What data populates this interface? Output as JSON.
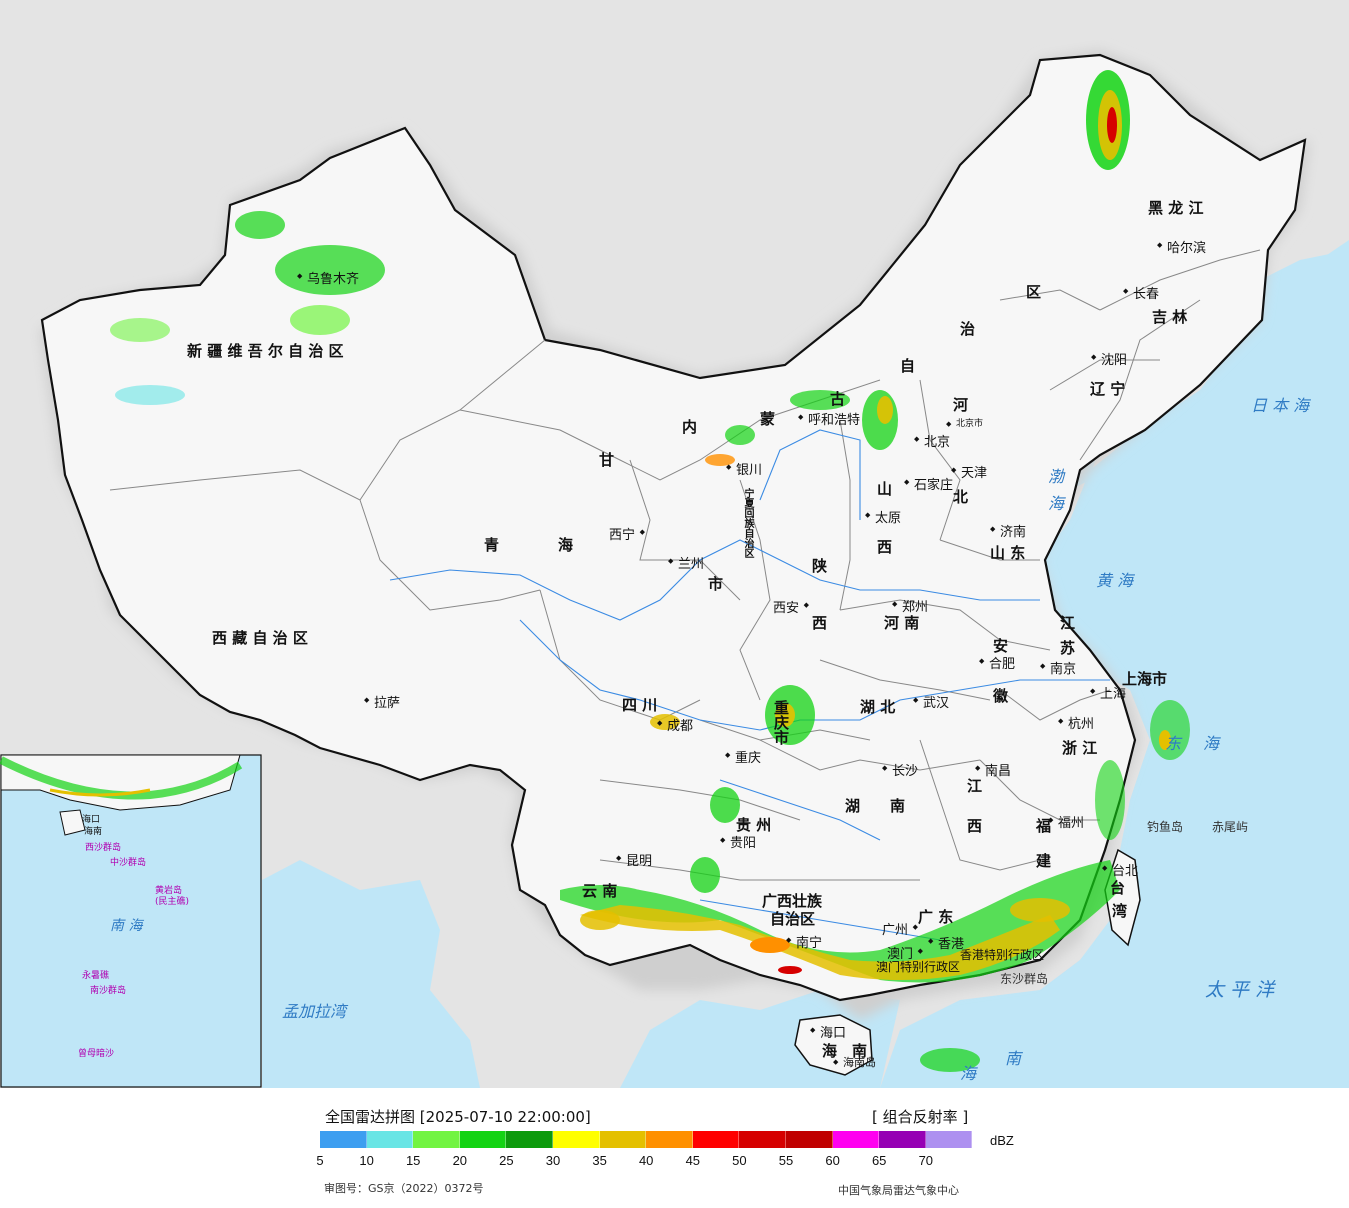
{
  "map": {
    "regions": {
      "xinjiang": "新 疆 维 吾 尔 自 治 区",
      "xizang": "西 藏 自 治 区",
      "qinghai_1": "青",
      "qinghai_2": "海",
      "gansu": "甘",
      "neimenggu_1": "内",
      "neimenggu_2": "蒙",
      "neimenggu_3": "古",
      "neimenggu_4": "自",
      "neimenggu_5": "治",
      "neimenggu_6": "区",
      "heilongjiang": "黑 龙 江",
      "jilin": "吉 林",
      "liaoning": "辽 宁",
      "hebei_1": "河",
      "hebei_2": "北",
      "shanxi_1": "山",
      "shanxi_2": "西",
      "shandong": "山 东",
      "henan": "河 南",
      "shaanxi_1": "陕",
      "shaanxi_2": "西",
      "ningxia": "宁夏回族自治区",
      "sichuan": "四 川",
      "chongqing": "重庆市",
      "hubei": "湖 北",
      "hunan_1": "湖",
      "hunan_2": "南",
      "anhui_1": "安",
      "anhui_2": "徽",
      "jiangsu_1": "江",
      "jiangsu_2": "苏",
      "shanghai": "上海市",
      "zhejiang": "浙 江",
      "jiangxi_1": "江",
      "jiangxi_2": "西",
      "fujian_1": "福",
      "fujian_2": "建",
      "guizhou": "贵 州",
      "yunnan": "云 南",
      "guangxi_1": "广西壮族",
      "guangxi_2": "自治区",
      "guangdong": "广 东",
      "hainan_1": "海",
      "hainan_2": "南",
      "taiwan_1": "台",
      "taiwan_2": "湾",
      "hk_sar": "香港特别行政区",
      "macau_sar": "澳门特别行政区",
      "tianjin": "天津",
      "gansu_extra": "市"
    },
    "cities": {
      "urumqi": "乌鲁木齐",
      "lhasa": "拉萨",
      "xining": "西宁",
      "lanzhou": "兰州",
      "yinchuan": "银川",
      "hohhot": "呼和浩特",
      "beijing": "北京",
      "beijing_city": "北京市",
      "tianjin": "天津",
      "shijiazhuang": "石家庄",
      "taiyuan": "太原",
      "jinan": "济南",
      "zhengzhou": "郑州",
      "xian": "西安",
      "chengdu": "成都",
      "chongqing": "重庆",
      "wuhan": "武汉",
      "hefei": "合肥",
      "nanjing": "南京",
      "shanghai": "上海",
      "hangzhou": "杭州",
      "nanchang": "南昌",
      "changsha": "长沙",
      "fuzhou": "福州",
      "taibei": "台北",
      "guiyang": "贵阳",
      "kunming": "昆明",
      "nanning": "南宁",
      "guangzhou": "广州",
      "macau": "澳门",
      "hongkong": "香港",
      "haikou": "海口",
      "hainan_island": "海南岛",
      "harbin": "哈尔滨",
      "changchun": "长春",
      "shenyang": "沈阳"
    },
    "seas": {
      "riben": "日 本 海",
      "bohai_1": "渤",
      "bohai_2": "海",
      "huanghai": "黄 海",
      "donghai_1": "东",
      "donghai_2": "海",
      "taipingyang": "太 平 洋",
      "nanhai_1": "南",
      "nanhai_2": "海",
      "mengjiala": "孟加拉湾"
    },
    "islands": {
      "diaoyu": "钓鱼岛",
      "chiwei": "赤尾屿",
      "dongsha": "东沙群岛"
    },
    "inset": {
      "nanhai": "南 海",
      "zhongsha": "中沙群岛",
      "huangyan": "黄岩岛",
      "huangyan_alt": "(民主礁)",
      "nansha": "南沙群岛",
      "xisha": "西沙群岛",
      "yongshu": "永暑礁",
      "zengmu": "曾母暗沙",
      "haikou": "海口",
      "haikou2": "海南"
    }
  },
  "legend": {
    "title": "全国雷达拼图 [2025-07-10 22:00:00]",
    "product": "[ 组合反射率 ]",
    "unit": "dBZ",
    "colors": [
      "#3d9ef0",
      "#69e5e5",
      "#72f442",
      "#13d313",
      "#0c9a0c",
      "#ffff00",
      "#e4c000",
      "#ff9000",
      "#ff0000",
      "#d60000",
      "#c00000",
      "#ff00f0",
      "#9600b4",
      "#ad90f0"
    ],
    "ticks": [
      "5",
      "10",
      "15",
      "20",
      "25",
      "30",
      "35",
      "40",
      "45",
      "50",
      "55",
      "60",
      "65",
      "70"
    ],
    "approval": "审图号：GS京（2022）0372号",
    "source": "中国气象局雷达气象中心"
  }
}
